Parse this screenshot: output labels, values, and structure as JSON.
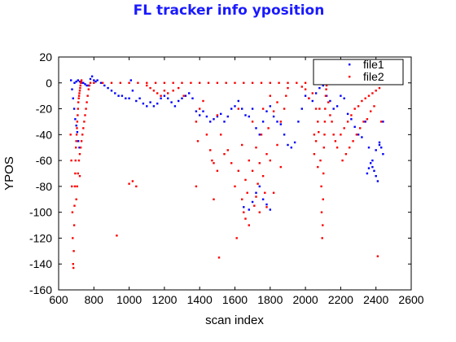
{
  "colors": {
    "title": "#1a1aff",
    "file1": "#0000ff",
    "file2": "#ff0000",
    "axis": "#000000"
  },
  "chart_data": {
    "type": "scatter",
    "title": "FL tracker info yposition",
    "xlabel": "scan index",
    "ylabel": "YPOS",
    "xlim": [
      600,
      2600
    ],
    "ylim": [
      -160,
      20
    ],
    "xticks": [
      600,
      800,
      1000,
      1200,
      1400,
      1600,
      1800,
      2000,
      2200,
      2400,
      2600
    ],
    "yticks": [
      20,
      0,
      -20,
      -40,
      -60,
      -80,
      -100,
      -120,
      -140,
      -160
    ],
    "grid": false,
    "legend": {
      "position": "top-right",
      "entries": [
        "file1",
        "file2"
      ]
    },
    "series": [
      {
        "name": "file1",
        "marker": "dot",
        "color": "#0000ff",
        "points": [
          [
            670,
            2
          ],
          [
            676,
            -5
          ],
          [
            682,
            -12
          ],
          [
            688,
            -20
          ],
          [
            694,
            -28
          ],
          [
            700,
            -33
          ],
          [
            706,
            -38
          ],
          [
            712,
            -45
          ],
          [
            718,
            -50
          ],
          [
            690,
            0
          ],
          [
            700,
            1
          ],
          [
            710,
            2
          ],
          [
            720,
            1
          ],
          [
            730,
            0
          ],
          [
            740,
            0
          ],
          [
            750,
            -1
          ],
          [
            760,
            -2
          ],
          [
            770,
            -2
          ],
          [
            780,
            3
          ],
          [
            790,
            5
          ],
          [
            800,
            2
          ],
          [
            810,
            1
          ],
          [
            820,
            2
          ],
          [
            840,
            0
          ],
          [
            860,
            -2
          ],
          [
            880,
            -4
          ],
          [
            900,
            -6
          ],
          [
            920,
            -8
          ],
          [
            940,
            -10
          ],
          [
            960,
            -10
          ],
          [
            980,
            -12
          ],
          [
            1000,
            -12
          ],
          [
            1010,
            2
          ],
          [
            1020,
            -6
          ],
          [
            1040,
            -14
          ],
          [
            1060,
            -12
          ],
          [
            1080,
            -16
          ],
          [
            1100,
            -18
          ],
          [
            1120,
            -15
          ],
          [
            1140,
            -18
          ],
          [
            1160,
            -16
          ],
          [
            1180,
            -12
          ],
          [
            1200,
            -10
          ],
          [
            1220,
            -12
          ],
          [
            1240,
            -15
          ],
          [
            1260,
            -18
          ],
          [
            1280,
            -14
          ],
          [
            1300,
            -12
          ],
          [
            1320,
            -10
          ],
          [
            1340,
            -8
          ],
          [
            1360,
            -12
          ],
          [
            1380,
            -22
          ],
          [
            1400,
            -25
          ],
          [
            1420,
            -22
          ],
          [
            1440,
            -26
          ],
          [
            1460,
            -30
          ],
          [
            1480,
            -28
          ],
          [
            1500,
            -26
          ],
          [
            1520,
            -24
          ],
          [
            1540,
            -30
          ],
          [
            1560,
            -26
          ],
          [
            1580,
            -20
          ],
          [
            1600,
            -18
          ],
          [
            1620,
            -14
          ],
          [
            1640,
            -20
          ],
          [
            1660,
            -25
          ],
          [
            1680,
            -26
          ],
          [
            1700,
            -20
          ],
          [
            1720,
            -35
          ],
          [
            1740,
            -40
          ],
          [
            1760,
            -30
          ],
          [
            1780,
            -22
          ],
          [
            1800,
            -18
          ],
          [
            1820,
            -26
          ],
          [
            1840,
            -30
          ],
          [
            1860,
            -32
          ],
          [
            1880,
            -40
          ],
          [
            1900,
            -48
          ],
          [
            1920,
            -50
          ],
          [
            1940,
            -46
          ],
          [
            1960,
            -30
          ],
          [
            1980,
            -20
          ],
          [
            2000,
            -10
          ],
          [
            2020,
            -12
          ],
          [
            2040,
            -14
          ],
          [
            2060,
            -8
          ],
          [
            2080,
            -4
          ],
          [
            2100,
            -2
          ],
          [
            2120,
            -10
          ],
          [
            2140,
            -14
          ],
          [
            2160,
            -20
          ],
          [
            2180,
            -18
          ],
          [
            2200,
            -10
          ],
          [
            2220,
            -12
          ],
          [
            2240,
            -24
          ],
          [
            2260,
            -28
          ],
          [
            2280,
            -34
          ],
          [
            2300,
            -40
          ],
          [
            2320,
            -42
          ],
          [
            2340,
            -30
          ],
          [
            2360,
            -50
          ],
          [
            2380,
            -65
          ],
          [
            2390,
            -68
          ],
          [
            2400,
            -72
          ],
          [
            2410,
            -76
          ],
          [
            2420,
            -48
          ],
          [
            2430,
            -50
          ],
          [
            2440,
            -55
          ],
          [
            1650,
            -96
          ],
          [
            1680,
            -98
          ],
          [
            1700,
            -92
          ],
          [
            1720,
            -85
          ],
          [
            1740,
            -80
          ],
          [
            1760,
            -90
          ],
          [
            1780,
            -94
          ],
          [
            1800,
            -98
          ],
          [
            2350,
            -70
          ],
          [
            2360,
            -66
          ],
          [
            2370,
            -62
          ],
          [
            2380,
            -60
          ],
          [
            2400,
            -52
          ],
          [
            2420,
            -46
          ],
          [
            2440,
            -30
          ]
        ]
      },
      {
        "name": "file2",
        "marker": "dot",
        "color": "#ff0000",
        "points": [
          [
            668,
            -40
          ],
          [
            672,
            -60
          ],
          [
            675,
            -80
          ],
          [
            678,
            -100
          ],
          [
            680,
            -120
          ],
          [
            682,
            -140
          ],
          [
            684,
            -143
          ],
          [
            686,
            -130
          ],
          [
            688,
            -110
          ],
          [
            690,
            -95
          ],
          [
            692,
            -80
          ],
          [
            694,
            -70
          ],
          [
            696,
            -60
          ],
          [
            698,
            -50
          ],
          [
            700,
            -45
          ],
          [
            702,
            -40
          ],
          [
            704,
            -35
          ],
          [
            706,
            -30
          ],
          [
            708,
            -25
          ],
          [
            710,
            -20
          ],
          [
            712,
            -15
          ],
          [
            714,
            -12
          ],
          [
            716,
            -10
          ],
          [
            718,
            -8
          ],
          [
            720,
            -6
          ],
          [
            722,
            -4
          ],
          [
            724,
            -2
          ],
          [
            726,
            0
          ],
          [
            728,
            1
          ],
          [
            730,
            2
          ],
          [
            700,
            -90
          ],
          [
            705,
            -80
          ],
          [
            710,
            -70
          ],
          [
            715,
            -60
          ],
          [
            720,
            -55
          ],
          [
            725,
            -50
          ],
          [
            730,
            -45
          ],
          [
            735,
            -40
          ],
          [
            740,
            -35
          ],
          [
            745,
            -30
          ],
          [
            750,
            -25
          ],
          [
            755,
            -20
          ],
          [
            760,
            -15
          ],
          [
            765,
            -10
          ],
          [
            770,
            -5
          ],
          [
            775,
            -2
          ],
          [
            780,
            0
          ],
          [
            800,
            0
          ],
          [
            850,
            0
          ],
          [
            900,
            0
          ],
          [
            950,
            0
          ],
          [
            1000,
            0
          ],
          [
            1050,
            0
          ],
          [
            1100,
            0
          ],
          [
            1150,
            0
          ],
          [
            1200,
            0
          ],
          [
            1250,
            0
          ],
          [
            1300,
            0
          ],
          [
            1350,
            0
          ],
          [
            1400,
            0
          ],
          [
            1450,
            0
          ],
          [
            1500,
            0
          ],
          [
            1550,
            0
          ],
          [
            1600,
            0
          ],
          [
            1650,
            0
          ],
          [
            1700,
            0
          ],
          [
            1750,
            0
          ],
          [
            1800,
            0
          ],
          [
            1850,
            0
          ],
          [
            1900,
            0
          ],
          [
            1950,
            0
          ],
          [
            2000,
            0
          ],
          [
            720,
            -72
          ],
          [
            930,
            -118
          ],
          [
            1000,
            -78
          ],
          [
            1020,
            -76
          ],
          [
            1040,
            -80
          ],
          [
            1100,
            -2
          ],
          [
            1120,
            -4
          ],
          [
            1140,
            -6
          ],
          [
            1160,
            -8
          ],
          [
            1180,
            -10
          ],
          [
            1200,
            -6
          ],
          [
            1220,
            -8
          ],
          [
            1250,
            -6
          ],
          [
            1280,
            -4
          ],
          [
            1310,
            -10
          ],
          [
            1380,
            -30
          ],
          [
            1380,
            -80
          ],
          [
            1390,
            -45
          ],
          [
            1400,
            -20
          ],
          [
            1420,
            -14
          ],
          [
            1440,
            -40
          ],
          [
            1460,
            -52
          ],
          [
            1470,
            -60
          ],
          [
            1480,
            -62
          ],
          [
            1480,
            -90
          ],
          [
            1500,
            -25
          ],
          [
            1500,
            -68
          ],
          [
            1510,
            -135
          ],
          [
            1520,
            -40
          ],
          [
            1540,
            -55
          ],
          [
            1560,
            -52
          ],
          [
            1580,
            -62
          ],
          [
            1600,
            -80
          ],
          [
            1610,
            -120
          ],
          [
            1620,
            -20
          ],
          [
            1620,
            -68
          ],
          [
            1640,
            -48
          ],
          [
            1640,
            -90
          ],
          [
            1650,
            -100
          ],
          [
            1660,
            -75
          ],
          [
            1660,
            -105
          ],
          [
            1670,
            -85
          ],
          [
            1680,
            -60
          ],
          [
            1680,
            -110
          ],
          [
            1700,
            -30
          ],
          [
            1700,
            -68
          ],
          [
            1710,
            -95
          ],
          [
            1720,
            -50
          ],
          [
            1720,
            -88
          ],
          [
            1730,
            -78
          ],
          [
            1740,
            -62
          ],
          [
            1740,
            -100
          ],
          [
            1750,
            -40
          ],
          [
            1760,
            -20
          ],
          [
            1760,
            -72
          ],
          [
            1770,
            -85
          ],
          [
            1780,
            -55
          ],
          [
            1780,
            -96
          ],
          [
            1790,
            -35
          ],
          [
            1800,
            -10
          ],
          [
            1800,
            -60
          ],
          [
            1820,
            -22
          ],
          [
            1820,
            -85
          ],
          [
            1840,
            -15
          ],
          [
            1840,
            -48
          ],
          [
            1860,
            -30
          ],
          [
            1860,
            -65
          ],
          [
            1880,
            -20
          ],
          [
            1890,
            -10
          ],
          [
            1900,
            -4
          ],
          [
            2060,
            -20
          ],
          [
            2070,
            -30
          ],
          [
            2080,
            -20
          ],
          [
            2085,
            -60
          ],
          [
            2090,
            -80
          ],
          [
            2092,
            -100
          ],
          [
            2095,
            -120
          ],
          [
            2098,
            -110
          ],
          [
            2100,
            -90
          ],
          [
            2102,
            -70
          ],
          [
            2105,
            -50
          ],
          [
            2108,
            -40
          ],
          [
            2110,
            -30
          ],
          [
            2112,
            -20
          ],
          [
            2115,
            -10
          ],
          [
            2118,
            -5
          ],
          [
            2120,
            -2
          ],
          [
            2130,
            -15
          ],
          [
            2140,
            -25
          ],
          [
            2150,
            -30
          ],
          [
            2160,
            -40
          ],
          [
            2170,
            -45
          ],
          [
            2180,
            -50
          ],
          [
            2200,
            -40
          ],
          [
            2220,
            -35
          ],
          [
            2240,
            -30
          ],
          [
            2260,
            -25
          ],
          [
            2280,
            -20
          ],
          [
            2300,
            -18
          ],
          [
            2320,
            -14
          ],
          [
            2340,
            -12
          ],
          [
            2360,
            -10
          ],
          [
            2380,
            -8
          ],
          [
            2400,
            -6
          ],
          [
            2420,
            -4
          ],
          [
            2410,
            -134
          ],
          [
            2040,
            -8
          ],
          [
            2020,
            -12
          ],
          [
            2000,
            -5
          ],
          [
            1980,
            -3
          ],
          [
            2050,
            -40
          ],
          [
            2050,
            -55
          ],
          [
            2060,
            -45
          ],
          [
            2070,
            -65
          ],
          [
            2075,
            -38
          ],
          [
            2210,
            -60
          ],
          [
            2230,
            -55
          ],
          [
            2250,
            -50
          ],
          [
            2270,
            -45
          ],
          [
            2290,
            -40
          ],
          [
            2310,
            -35
          ],
          [
            2330,
            -30
          ],
          [
            2350,
            -28
          ],
          [
            2370,
            -22
          ],
          [
            2390,
            -18
          ],
          [
            2430,
            -30
          ]
        ]
      }
    ]
  }
}
